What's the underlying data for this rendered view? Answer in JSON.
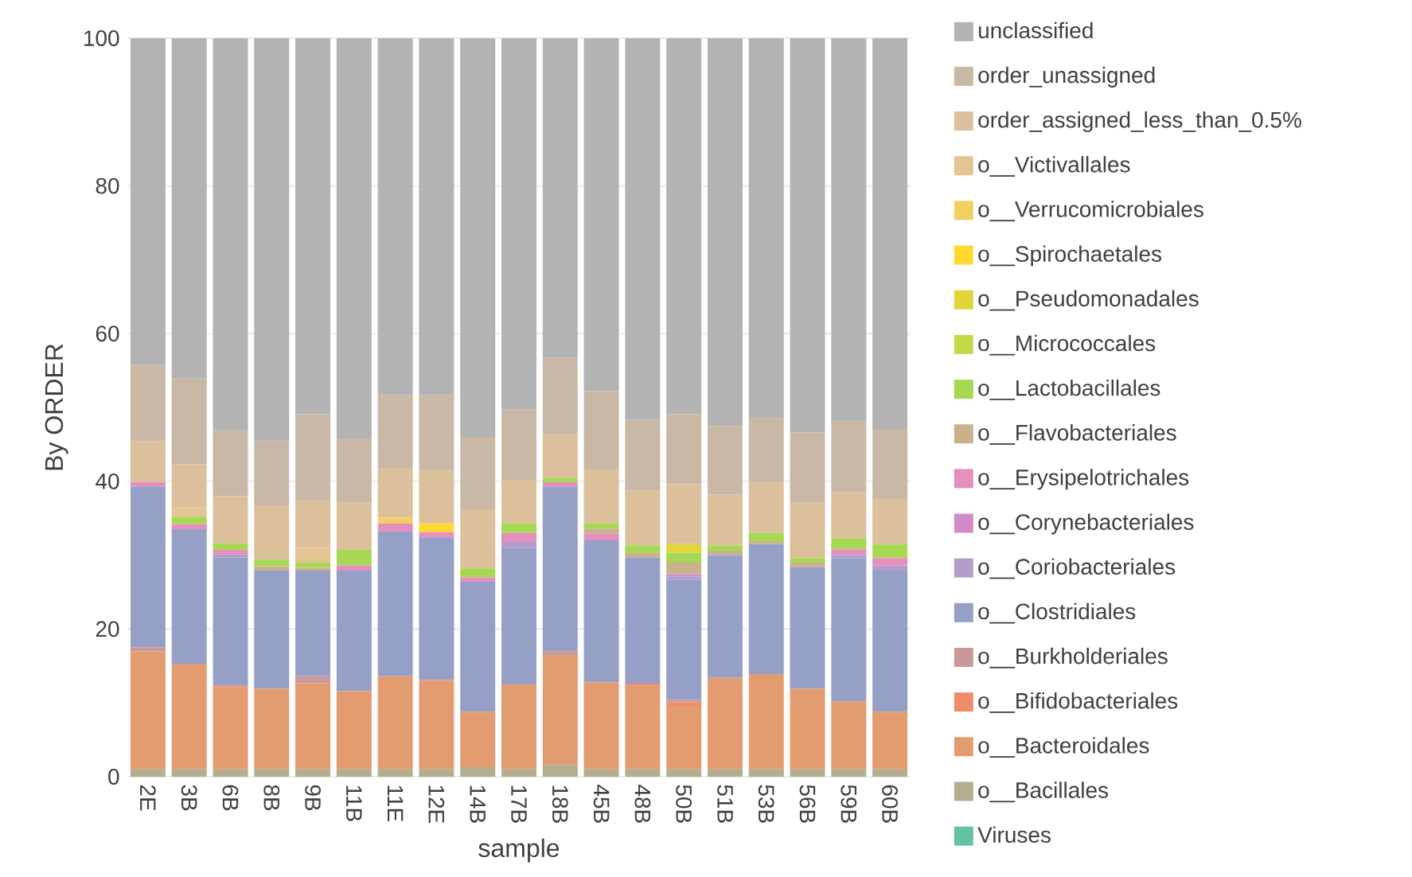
{
  "chart_data": {
    "type": "bar",
    "stacked": true,
    "xlabel": "sample",
    "ylabel": "By ORDER",
    "categories": [
      "2E",
      "3B",
      "6B",
      "8B",
      "9B",
      "11B",
      "11E",
      "12E",
      "14B",
      "17B",
      "18B",
      "45B",
      "48B",
      "50B",
      "51B",
      "53B",
      "56B",
      "59B",
      "60B"
    ],
    "ylim": [
      0,
      100
    ],
    "yticks": [
      0,
      20,
      40,
      60,
      80,
      100
    ],
    "grid": "y",
    "legend": "right",
    "series": [
      {
        "name": "Viruses",
        "color": "#66c2a5",
        "values": [
          0,
          0,
          0,
          0,
          0,
          0,
          0,
          0,
          0,
          0,
          0,
          0,
          0,
          0,
          0,
          0,
          0,
          0,
          0
        ]
      },
      {
        "name": "o__Bacillales",
        "color": "#b3ae8f",
        "values": [
          1,
          1,
          1,
          1,
          1,
          1,
          1,
          1,
          1.3,
          1,
          1.6,
          1,
          1,
          1,
          1,
          1,
          1,
          1,
          1
        ]
      },
      {
        "name": "o__Bacteroidales",
        "color": "#e39c6f",
        "values": [
          16.0,
          14.3,
          11.1,
          10.9,
          11.7,
          10.6,
          12.6,
          12.1,
          7.5,
          11.5,
          14.9,
          11.8,
          11.3,
          8.6,
          12.4,
          12.9,
          10.9,
          9.2,
          7.8
        ]
      },
      {
        "name": "o__Bifidobacteriales",
        "color": "#ef8c6c",
        "values": [
          0,
          0,
          0.2,
          0,
          0,
          0,
          0,
          0,
          0,
          0,
          0,
          0,
          0.3,
          0.5,
          0,
          0,
          0,
          0,
          0
        ]
      },
      {
        "name": "o__Burkholderiales",
        "color": "#c99898",
        "values": [
          0.5,
          0,
          0,
          0,
          0.9,
          0,
          0,
          0,
          0,
          0,
          0.5,
          0,
          0,
          0.3,
          0,
          0,
          0,
          0,
          0
        ]
      },
      {
        "name": "o__Clostridiales",
        "color": "#96a0c6",
        "values": [
          21.8,
          18.2,
          17.4,
          16.0,
          14.3,
          16.3,
          19.6,
          19.3,
          17.6,
          18.5,
          22.3,
          19.2,
          17.1,
          16.3,
          16.6,
          17.6,
          16.5,
          19.4,
          19.1
        ]
      },
      {
        "name": "o__Coriobacteriales",
        "color": "#b39ccc",
        "values": [
          0,
          0,
          0.4,
          0,
          0,
          0,
          0,
          0,
          0,
          0.8,
          0,
          0,
          0,
          0.4,
          0,
          0,
          0,
          0.4,
          0.7
        ]
      },
      {
        "name": "o__Corynebacteriales",
        "color": "#d08cc8",
        "values": [
          0,
          0,
          0,
          0,
          0,
          0,
          0,
          0,
          0,
          0,
          0,
          0,
          0,
          0.3,
          0,
          0,
          0,
          0,
          0
        ]
      },
      {
        "name": "o__Erysipelotrichales",
        "color": "#e58fbe",
        "values": [
          0.6,
          0.7,
          0.6,
          0,
          0,
          0.7,
          1.1,
          0.7,
          0.6,
          1.2,
          0.6,
          0.9,
          0,
          0,
          0,
          0,
          0,
          0.8,
          1.0
        ]
      },
      {
        "name": "o__Flavobacteriales",
        "color": "#c9b18d",
        "values": [
          0,
          0,
          0,
          0.6,
          0.4,
          0,
          0,
          0,
          0,
          0,
          0,
          0.7,
          0.6,
          1.6,
          0.6,
          0.4,
          0.6,
          0,
          0
        ]
      },
      {
        "name": "o__Lactobacillales",
        "color": "#a6d854",
        "values": [
          0,
          1.0,
          0.9,
          0.9,
          0.7,
          2.1,
          0,
          0,
          1.2,
          1.3,
          0.6,
          0.7,
          1.0,
          1.3,
          0.7,
          1.1,
          0.6,
          1.5,
          1.9
        ]
      },
      {
        "name": "o__Micrococcales",
        "color": "#c5d84a",
        "values": [
          0,
          0,
          0,
          0,
          0,
          0,
          0,
          0,
          0,
          0,
          0,
          0,
          0,
          0,
          0,
          0,
          0,
          0,
          0
        ]
      },
      {
        "name": "o__Pseudomonadales",
        "color": "#e0d63a",
        "values": [
          0,
          0,
          0,
          0,
          0,
          0,
          0,
          0,
          0,
          0,
          0,
          0,
          0,
          1.2,
          0,
          0,
          0,
          0,
          0
        ]
      },
      {
        "name": "o__Spirochaetales",
        "color": "#ffd92f",
        "values": [
          0,
          0,
          0,
          0,
          0,
          0,
          0,
          1.2,
          0,
          0,
          0,
          0,
          0,
          0,
          0,
          0,
          0,
          0,
          0
        ]
      },
      {
        "name": "o__Verrucomicrobiales",
        "color": "#f2cf63",
        "values": [
          0,
          0,
          0,
          0,
          0,
          0,
          0.8,
          0,
          0,
          0,
          0,
          0,
          0,
          0,
          0,
          0,
          0,
          0,
          0
        ]
      },
      {
        "name": "o__Victivallales",
        "color": "#e5c494",
        "values": [
          0,
          1.2,
          0,
          0,
          2.0,
          0,
          0,
          0,
          0,
          0,
          0,
          0,
          0,
          0,
          0,
          0,
          0,
          0,
          0
        ]
      },
      {
        "name": "order_assigned_less_than_0.5%",
        "color": "#dcc09c",
        "values": [
          5.5,
          5.9,
          6.4,
          7.2,
          6.4,
          6.4,
          6.7,
          7.3,
          8.0,
          5.9,
          5.8,
          7.3,
          7.4,
          8.1,
          6.9,
          6.8,
          7.5,
          6.2,
          6.1
        ]
      },
      {
        "name": "order_unassigned",
        "color": "#c9b8a6",
        "values": [
          10.4,
          11.6,
          8.9,
          8.9,
          11.7,
          8.7,
          9.9,
          10.1,
          9.8,
          9.5,
          10.4,
          10.6,
          9.6,
          9.5,
          9.3,
          8.8,
          9.5,
          9.7,
          9.5
        ]
      },
      {
        "name": "unclassified",
        "color": "#b3b3b3",
        "values": [
          44.2,
          46.1,
          53.1,
          54.5,
          50.9,
          54.2,
          48.3,
          48.3,
          54.0,
          50.3,
          43.3,
          47.8,
          51.7,
          50.9,
          52.5,
          51.4,
          53.4,
          51.8,
          52.9
        ]
      }
    ]
  }
}
